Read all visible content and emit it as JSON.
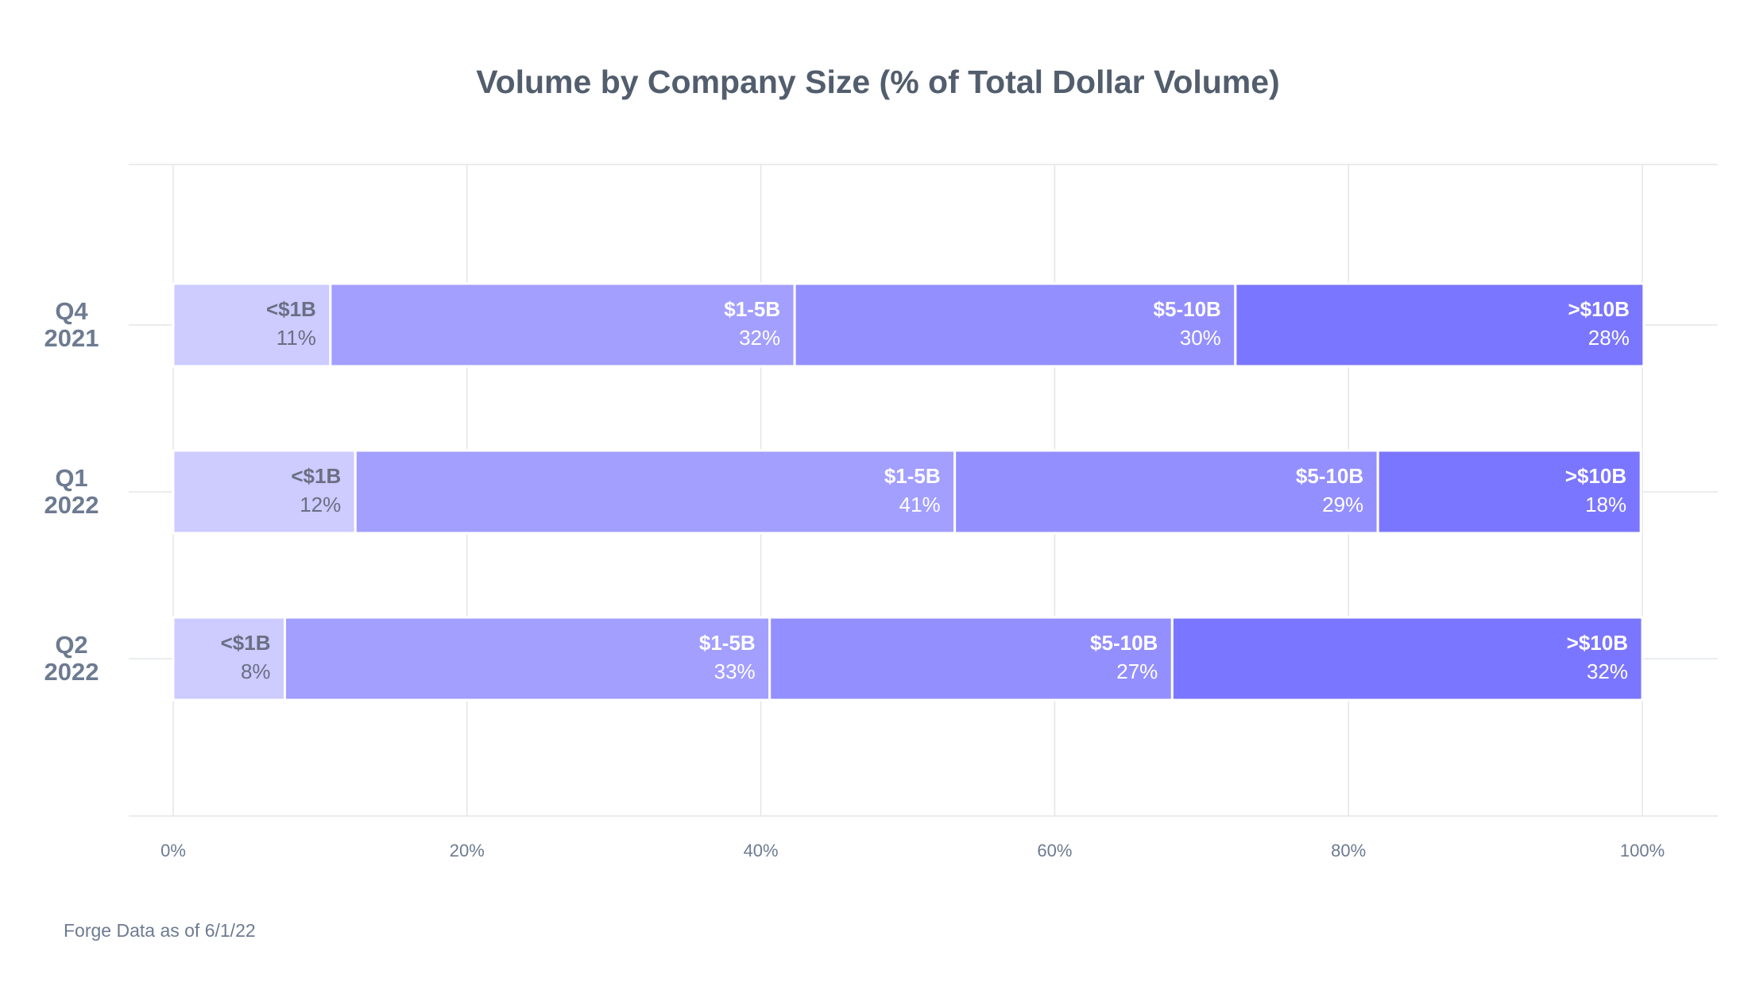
{
  "chart_data": {
    "type": "stacked-bar-horizontal",
    "title": "Volume by Company Size (% of Total Dollar Volume)",
    "footnote": "Forge Data as of 6/1/22",
    "categories": [
      "Q4 2021",
      "Q1 2022",
      "Q2 2022"
    ],
    "series": [
      {
        "name": "<$1B",
        "color": "#cdcbff",
        "values": [
          10.7,
          12.4,
          7.6
        ],
        "value_labels": [
          "11%",
          "12%",
          "8%"
        ]
      },
      {
        "name": "$1-5B",
        "color": "#a39fff",
        "values": [
          31.6,
          40.8,
          33.0
        ],
        "value_labels": [
          "32%",
          "41%",
          "33%"
        ]
      },
      {
        "name": "$5-10B",
        "color": "#948fff",
        "values": [
          30.0,
          28.8,
          27.4
        ],
        "value_labels": [
          "30%",
          "29%",
          "27%"
        ]
      },
      {
        "name": ">$10B",
        "color": "#7b76ff",
        "values": [
          27.8,
          17.9,
          32.0
        ],
        "value_labels": [
          "28%",
          "18%",
          "32%"
        ]
      }
    ],
    "xlim": [
      0,
      100
    ],
    "xticks": [
      {
        "value": 0,
        "label": "0%"
      },
      {
        "value": 20,
        "label": "20%"
      },
      {
        "value": 40,
        "label": "40%"
      },
      {
        "value": 60,
        "label": "60%"
      },
      {
        "value": 80,
        "label": "80%"
      },
      {
        "value": 100,
        "label": "100%"
      }
    ],
    "grid": true
  }
}
